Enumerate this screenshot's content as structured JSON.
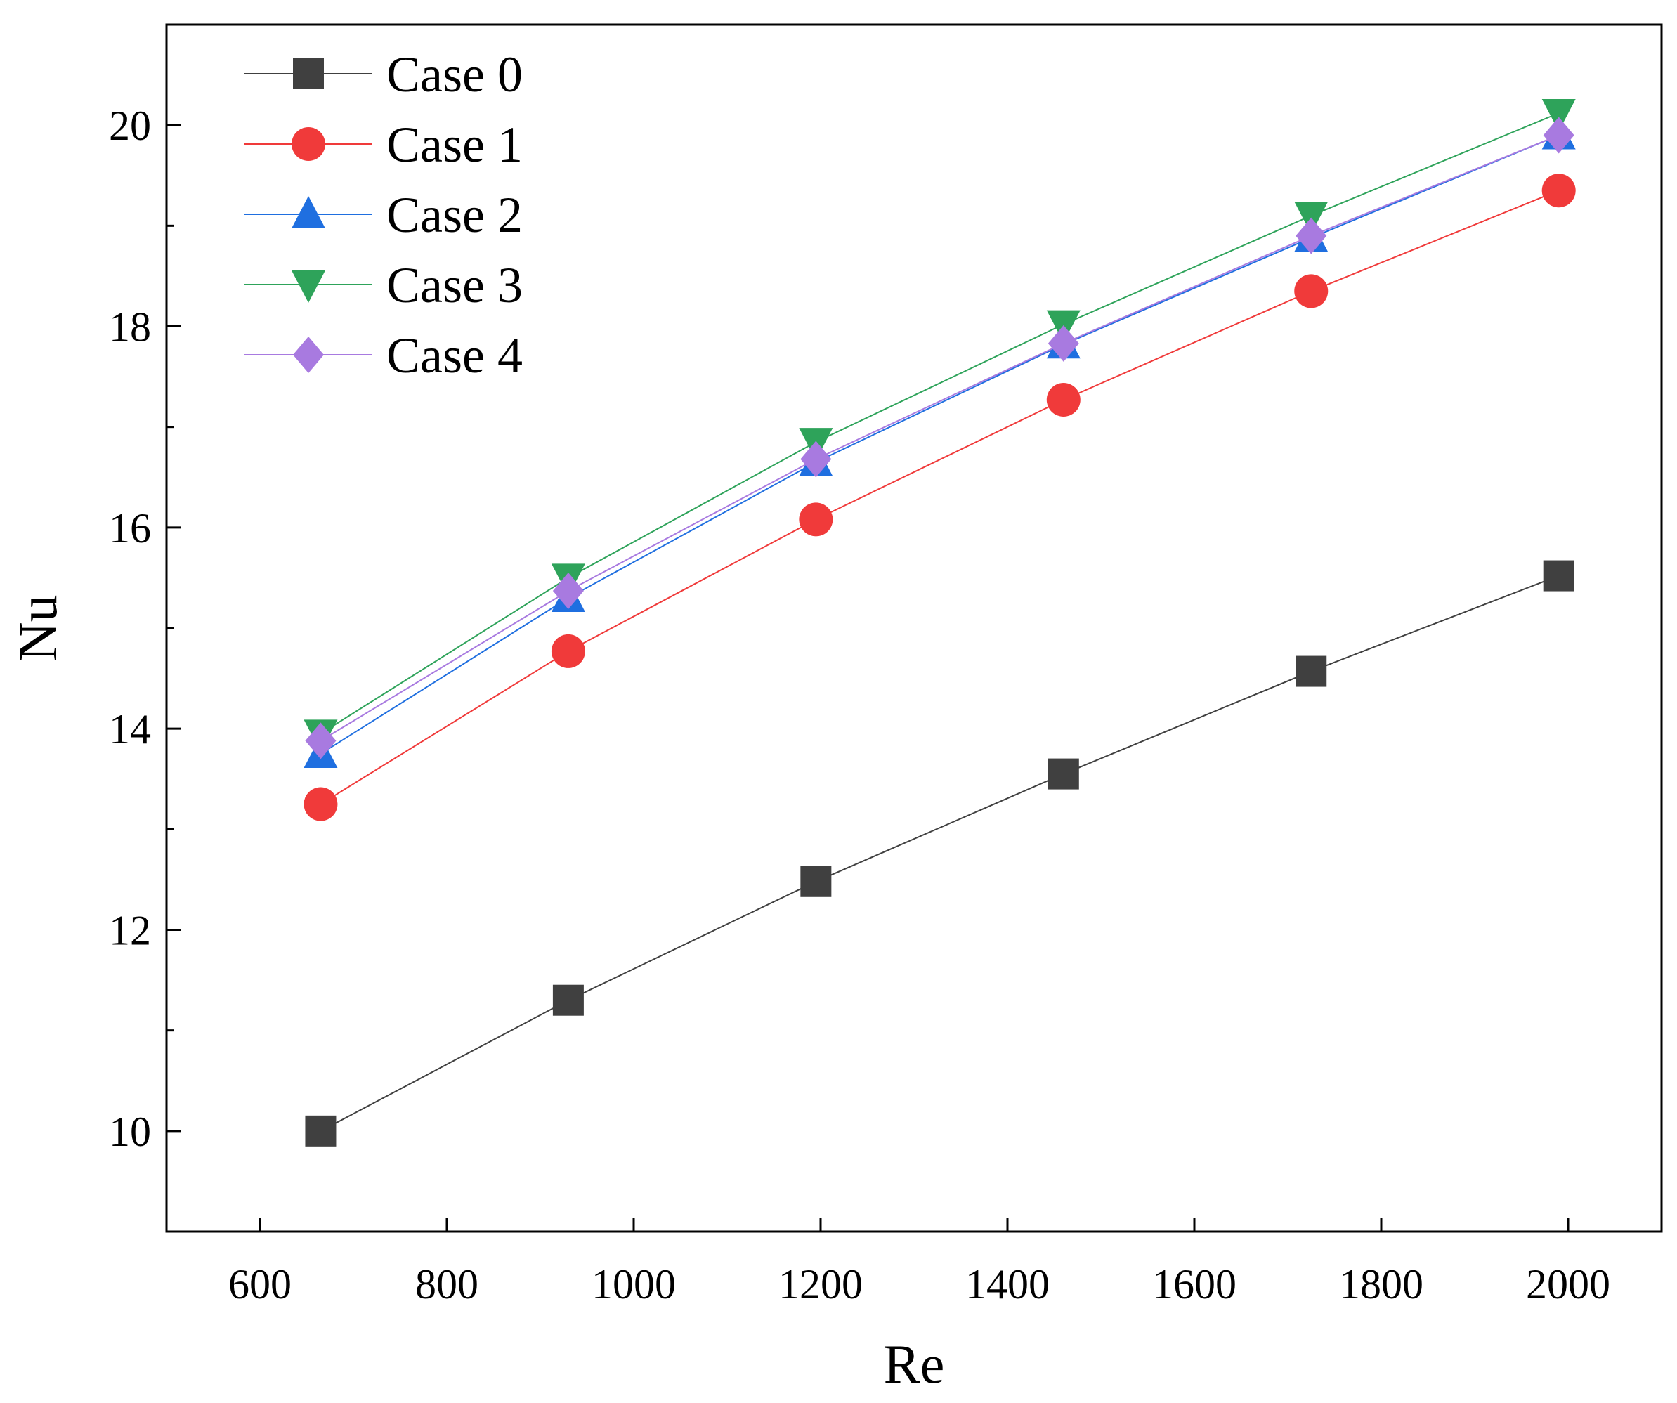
{
  "chart_data": {
    "type": "line",
    "title": "",
    "xlabel": "Re",
    "ylabel": "Nu",
    "xlim": [
      500,
      2100
    ],
    "ylim": [
      9,
      21
    ],
    "x_ticks": [
      600,
      800,
      1000,
      1200,
      1400,
      1600,
      1800,
      2000
    ],
    "x_tick_labels": [
      "600",
      "800",
      "1000",
      "1200",
      "1400",
      "1600",
      "1800",
      "2000"
    ],
    "y_ticks": [
      10,
      12,
      14,
      16,
      18,
      20
    ],
    "y_tick_labels": [
      "10",
      "12",
      "14",
      "16",
      "18",
      "20"
    ],
    "grid": false,
    "legend_position": "top-left",
    "x": [
      665,
      930,
      1195,
      1460,
      1725,
      1990
    ],
    "series": [
      {
        "name": "Case 0",
        "marker": "square",
        "color": "#404040",
        "values": [
          10.0,
          11.3,
          12.48,
          13.55,
          14.57,
          15.52
        ]
      },
      {
        "name": "Case 1",
        "marker": "circle",
        "color": "#f03a3a",
        "values": [
          13.25,
          14.77,
          16.08,
          17.27,
          18.35,
          19.35
        ]
      },
      {
        "name": "Case 2",
        "marker": "triangle-up",
        "color": "#1f6fe0",
        "values": [
          13.75,
          15.3,
          16.65,
          17.82,
          18.88,
          19.9
        ]
      },
      {
        "name": "Case 3",
        "marker": "triangle-down",
        "color": "#2ea35a",
        "values": [
          13.95,
          15.5,
          16.85,
          18.02,
          19.1,
          20.12
        ]
      },
      {
        "name": "Case 4",
        "marker": "diamond",
        "color": "#a87ae0",
        "values": [
          13.88,
          15.37,
          16.68,
          17.83,
          18.9,
          19.9
        ]
      }
    ]
  }
}
